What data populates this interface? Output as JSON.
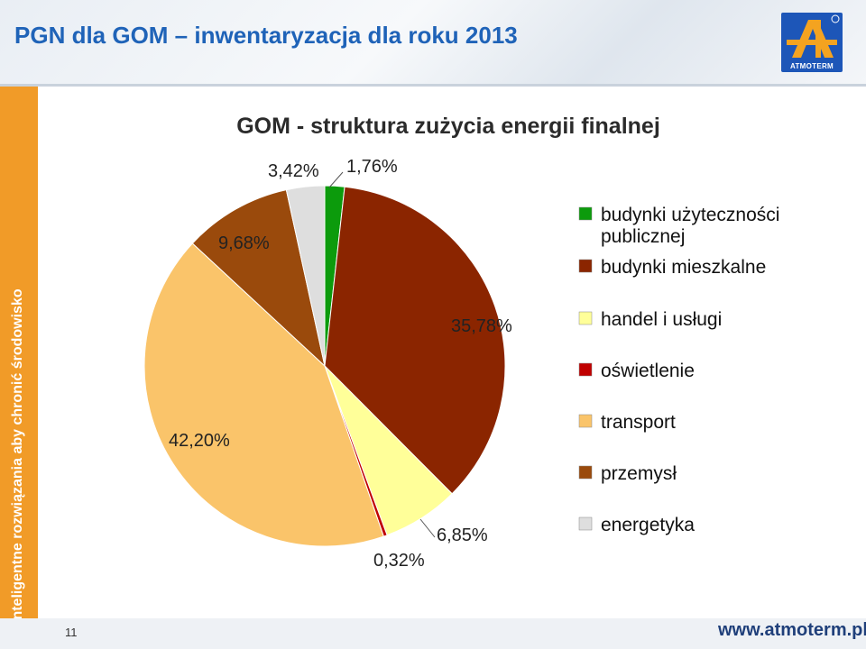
{
  "header": {
    "title": "PGN dla GOM – inwentaryzacja dla roku 2013",
    "logo_text": "ATMOTERM"
  },
  "sidebar": {
    "text": "Inteligentne rozwiązania aby chronić środowisko"
  },
  "footer": {
    "page_number": "11",
    "url": "www.atmoterm.pl"
  },
  "colors": {
    "sidebar": "#f19b28",
    "title": "#1f63b8",
    "logo": "#1d56b8"
  },
  "chart_data": {
    "type": "pie",
    "title": "GOM - struktura zużycia energii finalnej",
    "legend_position": "right",
    "categories": [
      "budynki użyteczności publicznej",
      "budynki mieszkalne",
      "handel i usługi",
      "oświetlenie",
      "transport",
      "przemysł",
      "energetyka"
    ],
    "values": [
      1.76,
      35.78,
      6.85,
      0.32,
      42.2,
      9.68,
      3.42
    ],
    "labels": [
      "1,76%",
      "35,78%",
      "6,85%",
      "0,32%",
      "42,20%",
      "9,68%",
      "3,42%"
    ],
    "colors": [
      "#0c9b0c",
      "#8b2500",
      "#ffff99",
      "#c00000",
      "#fac46a",
      "#9a4a0c",
      "#dedede"
    ]
  }
}
